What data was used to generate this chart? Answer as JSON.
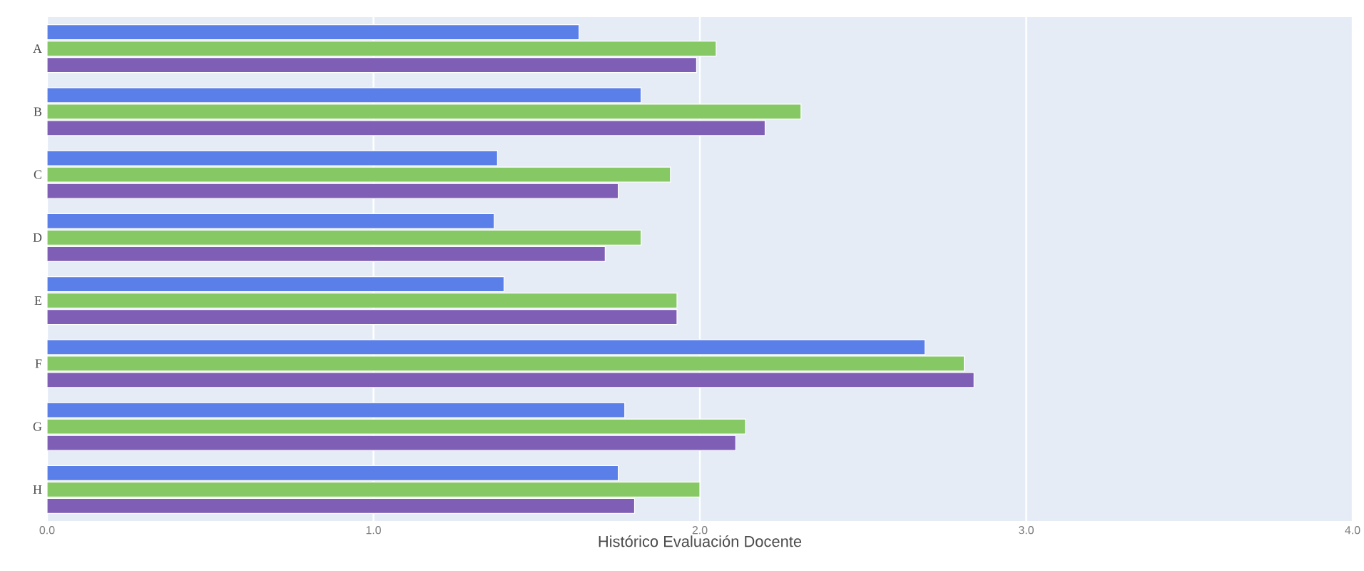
{
  "chart_data": {
    "type": "bar",
    "orientation": "horizontal",
    "xlabel": "Histórico Evaluación Docente",
    "categories": [
      "A",
      "B",
      "C",
      "D",
      "E",
      "F",
      "G",
      "H"
    ],
    "series": [
      {
        "color": "#5b7fe8",
        "values": [
          1.63,
          1.82,
          1.38,
          1.37,
          1.4,
          2.69,
          1.77,
          1.75
        ]
      },
      {
        "color": "#86c864",
        "values": [
          2.05,
          2.31,
          1.91,
          1.82,
          1.93,
          2.81,
          2.14,
          2.0
        ]
      },
      {
        "color": "#7f5fb5",
        "values": [
          1.99,
          2.2,
          1.75,
          1.71,
          1.93,
          2.84,
          2.11,
          1.8
        ]
      }
    ],
    "xlim": [
      0,
      4
    ],
    "xticks": [
      {
        "value": 0,
        "label": "0.0"
      },
      {
        "value": 1,
        "label": "1.0"
      },
      {
        "value": 2,
        "label": "2.0"
      },
      {
        "value": 3,
        "label": "3.0"
      },
      {
        "value": 4,
        "label": "4.0"
      }
    ],
    "grid": "x"
  }
}
